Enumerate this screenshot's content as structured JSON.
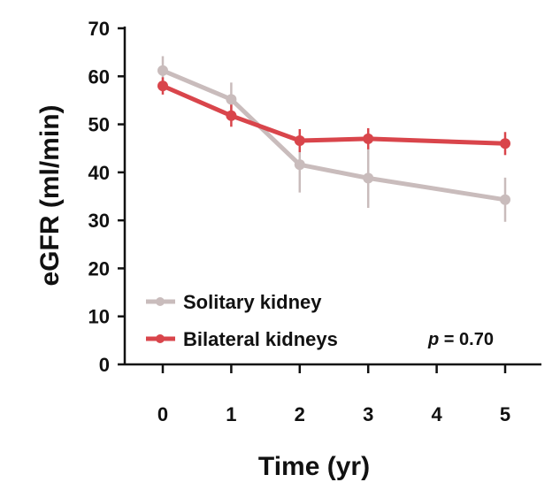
{
  "chart_data": {
    "type": "line",
    "xlabel": "Time (yr)",
    "ylabel": "eGFR (ml/min)",
    "x": [
      0,
      1,
      2,
      3,
      4,
      5
    ],
    "x_ticks": [
      "0",
      "1",
      "2",
      "3",
      "4",
      "5"
    ],
    "ylim": [
      0,
      70
    ],
    "y_ticks": [
      "0",
      "10",
      "20",
      "30",
      "40",
      "50",
      "60",
      "70"
    ],
    "grid": false,
    "legend_position": "bottom-left",
    "annotation": {
      "italic": "p",
      "rest": " = 0.70"
    },
    "series": [
      {
        "name": "Solitary kidney",
        "color": "#c9bcbc",
        "x": [
          0,
          1,
          2,
          3,
          5
        ],
        "values": [
          61.2,
          55.2,
          41.6,
          38.8,
          34.3
        ],
        "error": [
          3.0,
          3.5,
          5.8,
          6.2,
          4.6
        ]
      },
      {
        "name": "Bilateral kidneys",
        "color": "#d9454b",
        "x": [
          0,
          1,
          2,
          3,
          5
        ],
        "values": [
          58.0,
          51.8,
          46.6,
          47.0,
          46.0
        ],
        "error": [
          1.8,
          2.3,
          2.4,
          2.2,
          2.4
        ]
      }
    ]
  }
}
